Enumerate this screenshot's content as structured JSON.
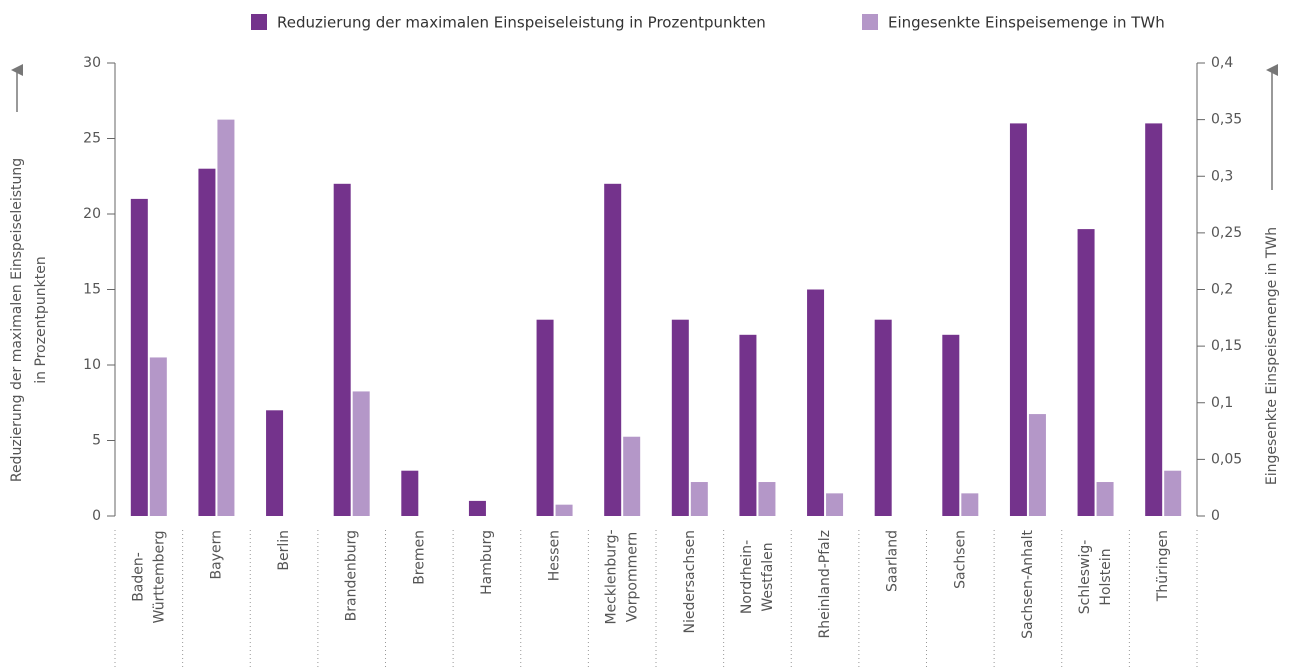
{
  "chart_data": {
    "type": "bar",
    "categories": [
      "Baden-\nWürttemberg",
      "Bayern",
      "Berlin",
      "Brandenburg",
      "Bremen",
      "Hamburg",
      "Hessen",
      "Mecklenburg-\nVorpommern",
      "Niedersachsen",
      "Nordrhein-\nWestfalen",
      "Rheinland-Pfalz",
      "Saarland",
      "Sachsen",
      "Sachsen-Anhalt",
      "Schleswig-\nHolstein",
      "Thüringen"
    ],
    "series": [
      {
        "name": "Reduzierung der maximalen Einspeiseleistung in Prozentpunkten",
        "color": "#74338c",
        "values": [
          21,
          23,
          7,
          22,
          3,
          1,
          13,
          22,
          13,
          12,
          15,
          13,
          12,
          26,
          19,
          26
        ]
      },
      {
        "name": "Eingesenkte Einspeisemenge in TWh",
        "color": "#b497c8",
        "axis": "y2",
        "values": [
          0.14,
          0.35,
          0,
          0.11,
          0,
          0,
          0.01,
          0.07,
          0.03,
          0.03,
          0.02,
          0,
          0.02,
          0.09,
          0.03,
          0.04
        ]
      }
    ],
    "y_label": [
      "Reduzierung der maximalen Einspeiseleistung",
      "in Prozentpunkten"
    ],
    "y2_label": "Eingesenkte Einspeisemenge in TWh",
    "ylim": [
      0,
      30
    ],
    "yticks": [
      0,
      5,
      10,
      15,
      20,
      25,
      30
    ],
    "y2lim": [
      0,
      0.4
    ],
    "y2ticks": [
      0,
      {
        "value": 0.05,
        "label": "0,05"
      },
      {
        "value": 0.1,
        "label": "0,1"
      },
      {
        "value": 0.15,
        "label": "0,15"
      },
      {
        "value": 0.2,
        "label": "0,2"
      },
      {
        "value": 0.25,
        "label": "0,25"
      },
      {
        "value": 0.3,
        "label": "0,3"
      },
      {
        "value": 0.35,
        "label": "0,35"
      },
      {
        "value": 0.4,
        "label": "0,4"
      }
    ],
    "legend": "top"
  }
}
